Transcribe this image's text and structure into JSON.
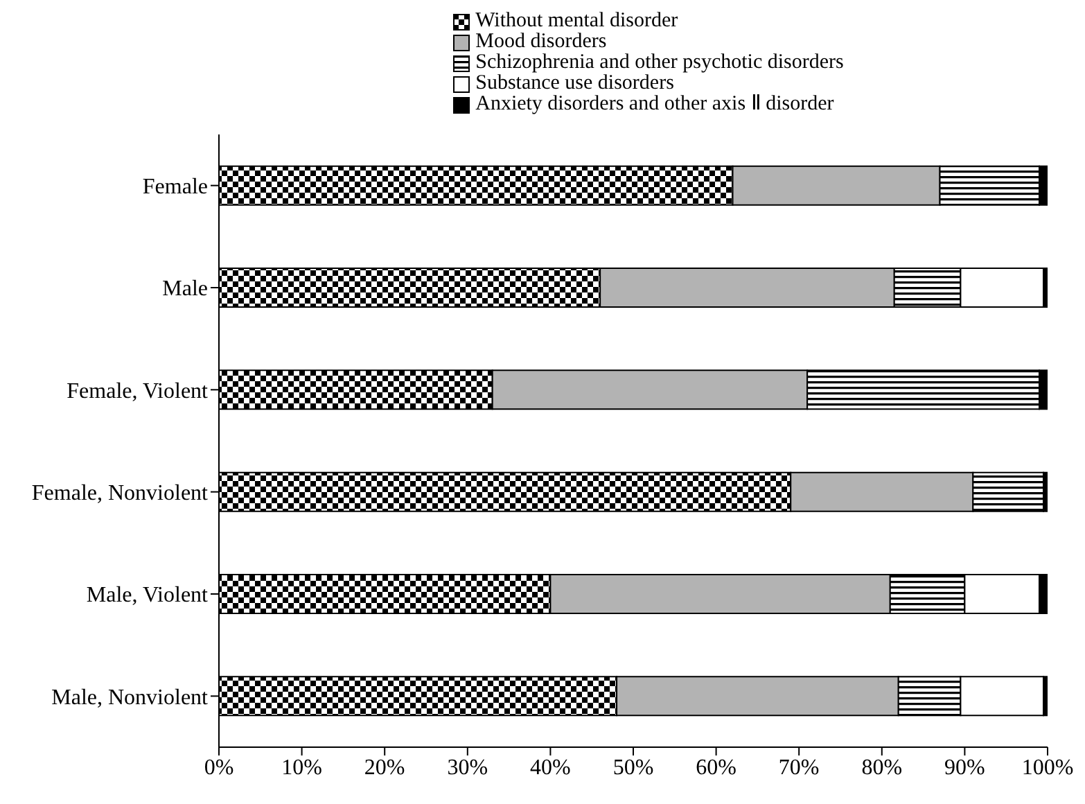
{
  "chart_data": {
    "type": "bar",
    "orientation": "horizontal",
    "stacked": true,
    "categories": [
      "Female",
      "Male",
      "Female, Violent",
      "Female, Nonviolent",
      "Male, Violent",
      "Male, Nonviolent"
    ],
    "series": [
      {
        "name": "Without mental disorder",
        "color": "#000000",
        "values": [
          62,
          46,
          33,
          69,
          40,
          48
        ]
      },
      {
        "name": "Mood disorders",
        "color": "#b3b3b3",
        "values": [
          25,
          35.5,
          38,
          22,
          41,
          34
        ]
      },
      {
        "name": "Schizophrenia and other psychotic disorders",
        "color": "#000000",
        "values": [
          12,
          8,
          28,
          8.5,
          9,
          7.5
        ]
      },
      {
        "name": "Substance use disorders",
        "color": "#ffffff",
        "values": [
          0,
          10,
          0,
          0,
          9,
          10
        ]
      },
      {
        "name": "Anxiety disorders and other axis Ⅱ disorder",
        "color": "#000000",
        "values": [
          1,
          0.5,
          1,
          0.5,
          1,
          0.5
        ]
      }
    ],
    "xlim": [
      0,
      100
    ],
    "xticks": [
      {
        "value": 0,
        "label": "0%"
      },
      {
        "value": 10,
        "label": "10%"
      },
      {
        "value": 20,
        "label": "20%"
      },
      {
        "value": 30,
        "label": "30%"
      },
      {
        "value": 40,
        "label": "40%"
      },
      {
        "value": 50,
        "label": "50%"
      },
      {
        "value": 60,
        "label": "60%"
      },
      {
        "value": 70,
        "label": "70%"
      },
      {
        "value": 80,
        "label": "80%"
      },
      {
        "value": 90,
        "label": "90%"
      },
      {
        "value": 100,
        "label": "100%"
      }
    ],
    "legend": "top",
    "grid": false
  }
}
